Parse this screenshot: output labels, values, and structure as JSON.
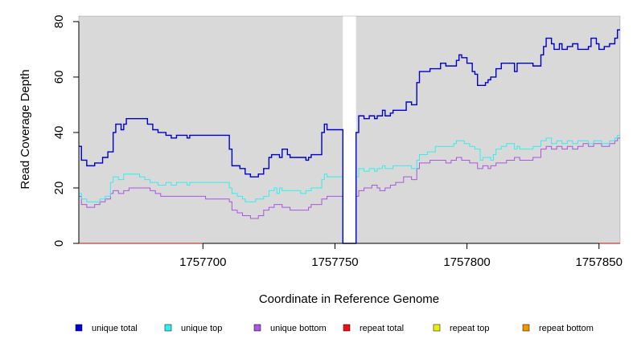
{
  "chart_data": {
    "type": "line",
    "xlabel": "Coordinate in Reference Genome",
    "ylabel": "Read Coverage Depth",
    "xlim": [
      1757653,
      1757858
    ],
    "ylim": [
      0,
      82
    ],
    "x_ticks": [
      1757700,
      1757750,
      1757800,
      1757850
    ],
    "y_ticks": [
      0,
      20,
      40,
      60,
      80
    ],
    "x_tick_labels": [
      "1757700",
      "1757750",
      "1757800",
      "1757850"
    ],
    "y_tick_labels": [
      "0",
      "20",
      "40",
      "60",
      "80"
    ],
    "background": "#d9d9d9",
    "gap": [
      1757753,
      1757758
    ],
    "legend": {
      "placement": "bottom"
    },
    "series": [
      {
        "name": "unique total",
        "color": "#0000cc",
        "points": [
          [
            1757653,
            35
          ],
          [
            1757654,
            30
          ],
          [
            1757656,
            28
          ],
          [
            1757659,
            29
          ],
          [
            1757660,
            29
          ],
          [
            1757662,
            31
          ],
          [
            1757664,
            33
          ],
          [
            1757666,
            40
          ],
          [
            1757667,
            43
          ],
          [
            1757669,
            41
          ],
          [
            1757670,
            43
          ],
          [
            1757671,
            45
          ],
          [
            1757679,
            43
          ],
          [
            1757681,
            41
          ],
          [
            1757683,
            40
          ],
          [
            1757686,
            39
          ],
          [
            1757688,
            38
          ],
          [
            1757690,
            39
          ],
          [
            1757694,
            38
          ],
          [
            1757695,
            39
          ],
          [
            1757710,
            34
          ],
          [
            1757711,
            28
          ],
          [
            1757714,
            27
          ],
          [
            1757716,
            25
          ],
          [
            1757718,
            24
          ],
          [
            1757721,
            25
          ],
          [
            1757723,
            27
          ],
          [
            1757725,
            31
          ],
          [
            1757726,
            32
          ],
          [
            1757729,
            31
          ],
          [
            1757730,
            34
          ],
          [
            1757732,
            32
          ],
          [
            1757733,
            31
          ],
          [
            1757739,
            30
          ],
          [
            1757740,
            31
          ],
          [
            1757741,
            32
          ],
          [
            1757745,
            40
          ],
          [
            1757746,
            43
          ],
          [
            1757747,
            41
          ],
          [
            1757748,
            41
          ],
          [
            1757753,
            0
          ],
          [
            1757758,
            40
          ],
          [
            1757759,
            46
          ],
          [
            1757761,
            45
          ],
          [
            1757763,
            46
          ],
          [
            1757765,
            45
          ],
          [
            1757766,
            46
          ],
          [
            1757768,
            48
          ],
          [
            1757769,
            46
          ],
          [
            1757771,
            47
          ],
          [
            1757772,
            48
          ],
          [
            1757777,
            51
          ],
          [
            1757779,
            50
          ],
          [
            1757781,
            58
          ],
          [
            1757782,
            62
          ],
          [
            1757786,
            63
          ],
          [
            1757790,
            65
          ],
          [
            1757792,
            64
          ],
          [
            1757796,
            66
          ],
          [
            1757797,
            68
          ],
          [
            1757798,
            67
          ],
          [
            1757800,
            65
          ],
          [
            1757802,
            62
          ],
          [
            1757803,
            61
          ],
          [
            1757804,
            57
          ],
          [
            1757807,
            58
          ],
          [
            1757808,
            59
          ],
          [
            1757809,
            60
          ],
          [
            1757811,
            63
          ],
          [
            1757813,
            65
          ],
          [
            1757818,
            62
          ],
          [
            1757819,
            65
          ],
          [
            1757825,
            64
          ],
          [
            1757828,
            68
          ],
          [
            1757829,
            71
          ],
          [
            1757830,
            74
          ],
          [
            1757832,
            72
          ],
          [
            1757833,
            70
          ],
          [
            1757835,
            72
          ],
          [
            1757836,
            70
          ],
          [
            1757838,
            71
          ],
          [
            1757840,
            72
          ],
          [
            1757842,
            70
          ],
          [
            1757846,
            71
          ],
          [
            1757847,
            74
          ],
          [
            1757849,
            72
          ],
          [
            1757850,
            70
          ],
          [
            1757852,
            71
          ],
          [
            1757854,
            72
          ],
          [
            1757856,
            74
          ],
          [
            1757857,
            77
          ]
        ]
      },
      {
        "name": "unique top",
        "color": "#33eeee",
        "points": [
          [
            1757653,
            18
          ],
          [
            1757654,
            16
          ],
          [
            1757656,
            15
          ],
          [
            1757659,
            15
          ],
          [
            1757661,
            16
          ],
          [
            1757663,
            17
          ],
          [
            1757665,
            22
          ],
          [
            1757666,
            24
          ],
          [
            1757668,
            23
          ],
          [
            1757670,
            25
          ],
          [
            1757676,
            24
          ],
          [
            1757678,
            23
          ],
          [
            1757680,
            22
          ],
          [
            1757683,
            21
          ],
          [
            1757686,
            22
          ],
          [
            1757688,
            21
          ],
          [
            1757690,
            22
          ],
          [
            1757694,
            21
          ],
          [
            1757695,
            22
          ],
          [
            1757710,
            20
          ],
          [
            1757711,
            18
          ],
          [
            1757713,
            17
          ],
          [
            1757715,
            16
          ],
          [
            1757716,
            15
          ],
          [
            1757720,
            16
          ],
          [
            1757721,
            16
          ],
          [
            1757723,
            17
          ],
          [
            1757725,
            19
          ],
          [
            1757727,
            20
          ],
          [
            1757728,
            18
          ],
          [
            1757729,
            20
          ],
          [
            1757730,
            19
          ],
          [
            1757737,
            18
          ],
          [
            1757739,
            19
          ],
          [
            1757741,
            20
          ],
          [
            1757745,
            23
          ],
          [
            1757746,
            25
          ],
          [
            1757747,
            24
          ],
          [
            1757748,
            24
          ],
          [
            1757753,
            0
          ],
          [
            1757758,
            24
          ],
          [
            1757759,
            27
          ],
          [
            1757761,
            26
          ],
          [
            1757763,
            27
          ],
          [
            1757765,
            26
          ],
          [
            1757766,
            27
          ],
          [
            1757768,
            28
          ],
          [
            1757769,
            27
          ],
          [
            1757771,
            27
          ],
          [
            1757772,
            28
          ],
          [
            1757777,
            28
          ],
          [
            1757779,
            27
          ],
          [
            1757781,
            30
          ],
          [
            1757782,
            32
          ],
          [
            1757785,
            33
          ],
          [
            1757788,
            35
          ],
          [
            1757792,
            35
          ],
          [
            1757795,
            36
          ],
          [
            1757796,
            37
          ],
          [
            1757799,
            36
          ],
          [
            1757801,
            35
          ],
          [
            1757803,
            34
          ],
          [
            1757805,
            30
          ],
          [
            1757806,
            31
          ],
          [
            1757809,
            30
          ],
          [
            1757810,
            32
          ],
          [
            1757811,
            34
          ],
          [
            1757813,
            35
          ],
          [
            1757815,
            36
          ],
          [
            1757818,
            34
          ],
          [
            1757819,
            35
          ],
          [
            1757820,
            34
          ],
          [
            1757825,
            35
          ],
          [
            1757828,
            37
          ],
          [
            1757830,
            38
          ],
          [
            1757832,
            36
          ],
          [
            1757834,
            37
          ],
          [
            1757836,
            36
          ],
          [
            1757838,
            37
          ],
          [
            1757840,
            36
          ],
          [
            1757842,
            37
          ],
          [
            1757844,
            37
          ],
          [
            1757846,
            36
          ],
          [
            1757848,
            37
          ],
          [
            1757851,
            36
          ],
          [
            1757854,
            37
          ],
          [
            1757856,
            38
          ],
          [
            1757857,
            39
          ]
        ]
      },
      {
        "name": "unique bottom",
        "color": "#aa55dd",
        "points": [
          [
            1757653,
            17
          ],
          [
            1757654,
            14
          ],
          [
            1757656,
            13
          ],
          [
            1757659,
            14
          ],
          [
            1757661,
            15
          ],
          [
            1757663,
            16
          ],
          [
            1757665,
            18
          ],
          [
            1757666,
            19
          ],
          [
            1757668,
            18
          ],
          [
            1757670,
            19
          ],
          [
            1757672,
            20
          ],
          [
            1757680,
            19
          ],
          [
            1757682,
            18
          ],
          [
            1757684,
            17
          ],
          [
            1757701,
            16
          ],
          [
            1757710,
            15
          ],
          [
            1757711,
            12
          ],
          [
            1757713,
            11
          ],
          [
            1757715,
            10
          ],
          [
            1757718,
            9
          ],
          [
            1757721,
            10
          ],
          [
            1757723,
            12
          ],
          [
            1757725,
            13
          ],
          [
            1757727,
            14
          ],
          [
            1757730,
            13
          ],
          [
            1757733,
            12
          ],
          [
            1757740,
            13
          ],
          [
            1757741,
            14
          ],
          [
            1757745,
            16
          ],
          [
            1757747,
            17
          ],
          [
            1757748,
            17
          ],
          [
            1757753,
            0
          ],
          [
            1757758,
            17
          ],
          [
            1757759,
            19
          ],
          [
            1757761,
            20
          ],
          [
            1757764,
            21
          ],
          [
            1757766,
            20
          ],
          [
            1757767,
            19
          ],
          [
            1757769,
            20
          ],
          [
            1757771,
            21
          ],
          [
            1757773,
            22
          ],
          [
            1757776,
            24
          ],
          [
            1757779,
            23
          ],
          [
            1757781,
            27
          ],
          [
            1757782,
            29
          ],
          [
            1757786,
            30
          ],
          [
            1757792,
            29
          ],
          [
            1757794,
            30
          ],
          [
            1757796,
            31
          ],
          [
            1757798,
            30
          ],
          [
            1757801,
            29
          ],
          [
            1757804,
            27
          ],
          [
            1757806,
            28
          ],
          [
            1757808,
            27
          ],
          [
            1757809,
            28
          ],
          [
            1757811,
            29
          ],
          [
            1757815,
            30
          ],
          [
            1757818,
            31
          ],
          [
            1757820,
            30
          ],
          [
            1757825,
            31
          ],
          [
            1757828,
            34
          ],
          [
            1757830,
            35
          ],
          [
            1757832,
            34
          ],
          [
            1757834,
            35
          ],
          [
            1757836,
            34
          ],
          [
            1757838,
            35
          ],
          [
            1757840,
            34
          ],
          [
            1757842,
            35
          ],
          [
            1757844,
            36
          ],
          [
            1757846,
            35
          ],
          [
            1757848,
            36
          ],
          [
            1757851,
            35
          ],
          [
            1757854,
            36
          ],
          [
            1757856,
            37
          ],
          [
            1757857,
            38
          ]
        ]
      },
      {
        "name": "repeat total",
        "color": "#ee1111",
        "points": [
          [
            1757653,
            0
          ],
          [
            1757858,
            0
          ]
        ]
      },
      {
        "name": "repeat top",
        "color": "#eeee11",
        "points": [
          [
            1757653,
            0
          ],
          [
            1757858,
            0
          ]
        ]
      },
      {
        "name": "repeat bottom",
        "color": "#ee9900",
        "points": [
          [
            1757653,
            0
          ],
          [
            1757858,
            0
          ]
        ]
      }
    ]
  }
}
